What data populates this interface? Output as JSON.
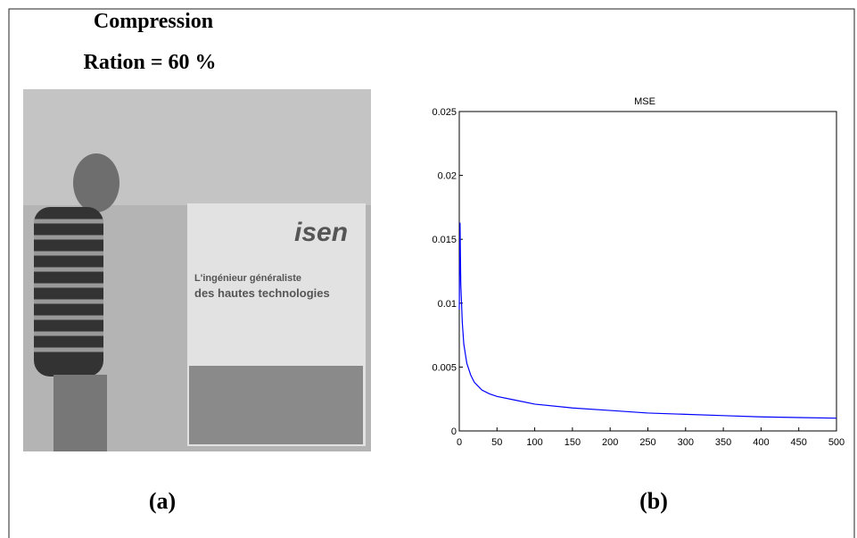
{
  "header": {
    "line1": "Compression",
    "line2": "Ration = 60 %"
  },
  "photo": {
    "logo": "isen",
    "banner_line1": "L'ingénieur généraliste",
    "banner_line2": "des hautes technologies"
  },
  "captions": {
    "a": "(a)",
    "b": "(b)"
  },
  "chart_data": {
    "type": "line",
    "title": "MSE",
    "x": [
      0,
      1,
      2,
      4,
      6,
      10,
      15,
      20,
      30,
      40,
      50,
      75,
      100,
      150,
      200,
      250,
      300,
      350,
      400,
      450,
      500
    ],
    "series": [
      {
        "name": "MSE",
        "color": "#0000ff",
        "values": [
          0.0095,
          0.0163,
          0.0115,
          0.0085,
          0.0068,
          0.0053,
          0.0044,
          0.0038,
          0.0032,
          0.0029,
          0.0027,
          0.0024,
          0.0021,
          0.0018,
          0.0016,
          0.0014,
          0.0013,
          0.0012,
          0.0011,
          0.00105,
          0.001
        ]
      }
    ],
    "xlim": [
      0,
      500
    ],
    "xticks": [
      0,
      50,
      100,
      150,
      200,
      250,
      300,
      350,
      400,
      450,
      500
    ],
    "ylim": [
      0,
      0.025
    ],
    "yticks": [
      0,
      0.005,
      0.01,
      0.015,
      0.02,
      0.025
    ],
    "grid": false
  }
}
